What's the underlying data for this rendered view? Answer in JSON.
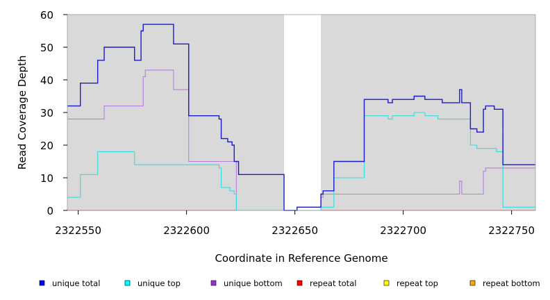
{
  "chart_data": {
    "type": "line",
    "title": "",
    "xlabel": "Coordinate in Reference Genome",
    "ylabel": "Read Coverage Depth",
    "xlim": [
      2322545,
      2322761
    ],
    "ylim": [
      0,
      60
    ],
    "x_ticks": [
      2322550,
      2322600,
      2322650,
      2322700,
      2322750
    ],
    "x_tick_labels": [
      "2322550",
      "2322600",
      "2322650",
      "2322700",
      "2322750"
    ],
    "y_ticks": [
      0,
      10,
      20,
      30,
      40,
      50,
      60
    ],
    "y_tick_labels": [
      "0",
      "10",
      "20",
      "30",
      "40",
      "50",
      "60"
    ],
    "background_color": "#d9d9d9",
    "uncovered_region": [
      2322645,
      2322662
    ],
    "legend_position": "bottom",
    "series": [
      {
        "name": "unique total",
        "color": "#0000ff",
        "line_color": "#1a1acc",
        "x": [
          2322545,
          2322551,
          2322559,
          2322562,
          2322576,
          2322579,
          2322580,
          2322581,
          2322594,
          2322601,
          2322615,
          2322616,
          2322619,
          2322621,
          2322622,
          2322624,
          2322645,
          2322651,
          2322662,
          2322663,
          2322668,
          2322682,
          2322693,
          2322695,
          2322705,
          2322710,
          2322718,
          2322726,
          2322727,
          2322731,
          2322734,
          2322737,
          2322738,
          2322742,
          2322746,
          2322761
        ],
        "y": [
          32,
          39,
          46,
          50,
          46,
          55,
          57,
          57,
          51,
          29,
          28,
          22,
          21,
          20,
          15,
          11,
          0,
          1,
          5,
          6,
          15,
          34,
          33,
          34,
          35,
          34,
          33,
          37,
          33,
          25,
          24,
          31,
          32,
          31,
          14,
          14
        ]
      },
      {
        "name": "unique top",
        "color": "#00ffff",
        "line_color": "#33dddd",
        "x": [
          2322545,
          2322551,
          2322559,
          2322576,
          2322615,
          2322616,
          2322620,
          2322622,
          2322623,
          2322645,
          2322662,
          2322668,
          2322682,
          2322693,
          2322695,
          2322705,
          2322710,
          2322716,
          2322731,
          2322734,
          2322743,
          2322746,
          2322761
        ],
        "y": [
          4,
          11,
          18,
          14,
          13,
          7,
          6,
          5,
          0,
          0,
          1,
          10,
          29,
          28,
          29,
          30,
          29,
          28,
          20,
          19,
          18,
          1,
          1
        ]
      },
      {
        "name": "unique bottom",
        "color": "#9932cc",
        "line_color": "#b57ee0",
        "x": [
          2322545,
          2322562,
          2322580,
          2322581,
          2322594,
          2322601,
          2322623,
          2322662,
          2322663,
          2322726,
          2322727,
          2322737,
          2322738,
          2322761
        ],
        "y": [
          28,
          32,
          41,
          43,
          37,
          15,
          0,
          4,
          5,
          9,
          5,
          12,
          13,
          13
        ]
      },
      {
        "name": "repeat total",
        "color": "#ff0000",
        "line_color": "#ff0000",
        "x": [
          2322545,
          2322761
        ],
        "y": [
          0,
          0
        ]
      },
      {
        "name": "repeat top",
        "color": "#ffff00",
        "line_color": "#ffff00",
        "x": [
          2322545,
          2322761
        ],
        "y": [
          0,
          0
        ]
      },
      {
        "name": "repeat bottom",
        "color": "#ffa500",
        "line_color": "#ffa500",
        "x": [
          2322545,
          2322761
        ],
        "y": [
          0,
          0
        ]
      }
    ]
  }
}
